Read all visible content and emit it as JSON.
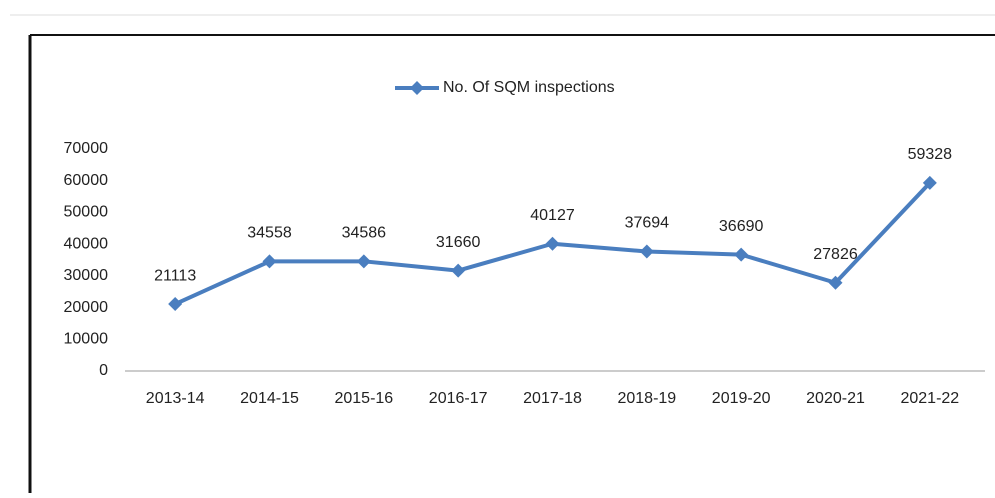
{
  "chart_data": {
    "type": "line",
    "categories": [
      "2013-14",
      "2014-15",
      "2015-16",
      "2016-17",
      "2017-18",
      "2018-19",
      "2019-20",
      "2020-21",
      "2021-22"
    ],
    "series": [
      {
        "name": "No. Of SQM inspections",
        "color": "#4a7ebf",
        "values": [
          21113,
          34558,
          34586,
          31660,
          40127,
          37694,
          36690,
          27826,
          59328
        ]
      }
    ],
    "ylim": [
      0,
      70000
    ],
    "yticks": [
      0,
      10000,
      20000,
      30000,
      40000,
      50000,
      60000,
      70000
    ],
    "grid": false,
    "legend": "top",
    "data_labels": true
  }
}
